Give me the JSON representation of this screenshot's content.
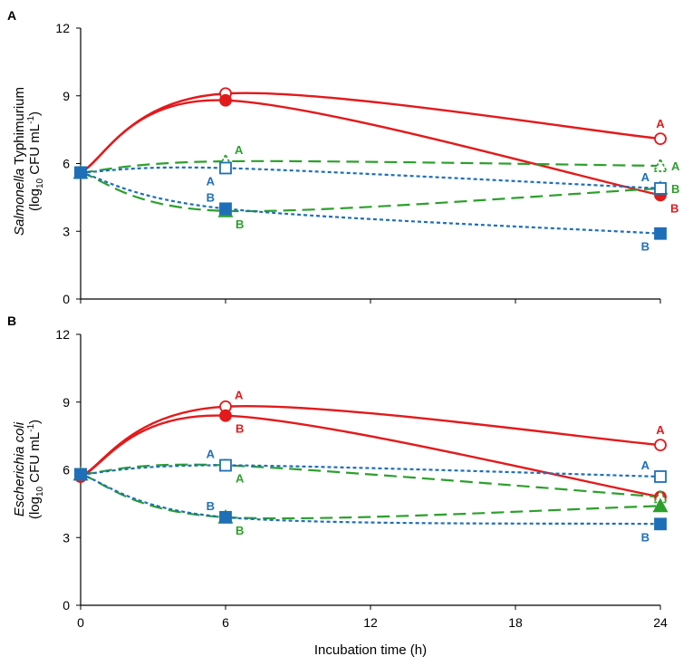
{
  "colors": {
    "red": "#e31a1c",
    "green": "#2ca02c",
    "blue": "#1f6fb8",
    "axis": "#000000"
  },
  "chart_data": [
    {
      "type": "line",
      "panel": "A",
      "ylabel_italic": "Salmonella",
      "ylabel_rest": " Typhimurium",
      "ylabel_unit_pre": "(log",
      "ylabel_unit_sub": "10",
      "ylabel_unit_mid": " CFU mL",
      "ylabel_unit_sup": "-1",
      "ylabel_unit_post": ")",
      "x": [
        0,
        6,
        24
      ],
      "xticks": [
        0,
        6,
        12,
        18,
        24
      ],
      "yticks": [
        0,
        3,
        6,
        9,
        12
      ],
      "ylim": [
        0,
        12
      ],
      "xlim": [
        0,
        24
      ],
      "series": [
        {
          "name": "red-open",
          "color": "red",
          "style": "solid",
          "marker": "circle-open",
          "values": [
            5.6,
            9.1,
            7.1
          ],
          "labels": [
            "",
            "",
            "A"
          ],
          "label_pos": [
            "",
            "",
            "above"
          ]
        },
        {
          "name": "red-filled",
          "color": "red",
          "style": "solid",
          "marker": "circle-filled",
          "values": [
            5.6,
            8.8,
            4.6
          ],
          "labels": [
            "",
            "",
            "B"
          ],
          "label_pos": [
            "",
            "",
            "below-right"
          ]
        },
        {
          "name": "green-open",
          "color": "green",
          "style": "dashed",
          "marker": "triangle-open",
          "values": [
            5.6,
            6.1,
            5.9
          ],
          "labels": [
            "",
            "A",
            "A"
          ],
          "label_pos": [
            "",
            "above-right",
            "right"
          ]
        },
        {
          "name": "green-filled",
          "color": "green",
          "style": "dashed",
          "marker": "triangle-filled",
          "values": [
            5.6,
            3.9,
            4.9
          ],
          "labels": [
            "",
            "B",
            "B"
          ],
          "label_pos": [
            "",
            "below-right",
            "right"
          ]
        },
        {
          "name": "blue-open",
          "color": "blue",
          "style": "dotted",
          "marker": "square-open",
          "values": [
            5.6,
            5.8,
            4.9
          ],
          "labels": [
            "",
            "A",
            "A"
          ],
          "label_pos": [
            "",
            "below-left",
            "above-left"
          ]
        },
        {
          "name": "blue-filled",
          "color": "blue",
          "style": "dotted",
          "marker": "square-filled",
          "values": [
            5.6,
            4.0,
            2.9
          ],
          "labels": [
            "",
            "B",
            "B"
          ],
          "label_pos": [
            "",
            "above-left",
            "below-left"
          ]
        }
      ]
    },
    {
      "type": "line",
      "panel": "B",
      "ylabel_italic": "Escherichia coli",
      "ylabel_rest": "",
      "ylabel_unit_pre": "(log",
      "ylabel_unit_sub": "10",
      "ylabel_unit_mid": " CFU mL",
      "ylabel_unit_sup": "-1",
      "ylabel_unit_post": ")",
      "x": [
        0,
        6,
        24
      ],
      "xticks": [
        0,
        6,
        12,
        18,
        24
      ],
      "yticks": [
        0,
        3,
        6,
        9,
        12
      ],
      "ylim": [
        0,
        12
      ],
      "xlim": [
        0,
        24
      ],
      "xlabel": "Incubation time (h)",
      "series": [
        {
          "name": "red-open",
          "color": "red",
          "style": "solid",
          "marker": "circle-open",
          "values": [
            5.7,
            8.8,
            7.1
          ],
          "labels": [
            "",
            "A",
            "A"
          ],
          "label_pos": [
            "",
            "above-right",
            "above"
          ]
        },
        {
          "name": "red-filled",
          "color": "red",
          "style": "solid",
          "marker": "circle-filled",
          "values": [
            5.7,
            8.4,
            4.8
          ],
          "labels": [
            "",
            "B",
            ""
          ],
          "label_pos": [
            "",
            "below-right",
            ""
          ]
        },
        {
          "name": "green-open",
          "color": "green",
          "style": "dashed",
          "marker": "triangle-open",
          "values": [
            5.8,
            6.2,
            4.8
          ],
          "labels": [
            "",
            "A",
            ""
          ],
          "label_pos": [
            "",
            "below-right",
            ""
          ]
        },
        {
          "name": "green-filled",
          "color": "green",
          "style": "dashed",
          "marker": "triangle-filled",
          "values": [
            5.8,
            3.9,
            4.4
          ],
          "labels": [
            "",
            "B",
            ""
          ],
          "label_pos": [
            "",
            "below-right",
            ""
          ]
        },
        {
          "name": "blue-open",
          "color": "blue",
          "style": "dotted",
          "marker": "square-open",
          "values": [
            5.8,
            6.2,
            5.7
          ],
          "labels": [
            "",
            "A",
            "A"
          ],
          "label_pos": [
            "",
            "above-left",
            "above-left"
          ]
        },
        {
          "name": "blue-filled",
          "color": "blue",
          "style": "dotted",
          "marker": "square-filled",
          "values": [
            5.8,
            3.9,
            3.6
          ],
          "labels": [
            "",
            "B",
            "B"
          ],
          "label_pos": [
            "",
            "above-left",
            "below-left"
          ]
        }
      ]
    }
  ]
}
